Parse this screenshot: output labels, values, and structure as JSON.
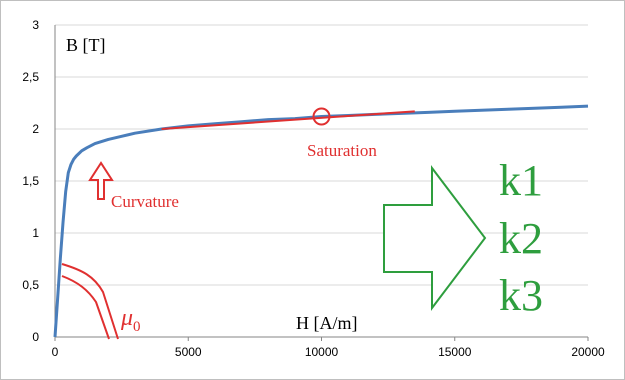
{
  "chart_data": {
    "type": "line",
    "title": "",
    "xlabel": "H [A/m]",
    "ylabel": "B [T]",
    "xlim": [
      0,
      20000
    ],
    "ylim": [
      0,
      3
    ],
    "x_ticks": [
      "0",
      "5000",
      "10000",
      "15000",
      "20000"
    ],
    "y_ticks": [
      "0",
      "0,5",
      "1",
      "1,5",
      "2",
      "2,5",
      "3"
    ],
    "grid": "horizontal",
    "series": [
      {
        "color": "#4a7ebb",
        "x": [
          0,
          100,
          200,
          300,
          400,
          500,
          600,
          700,
          800,
          1000,
          1200,
          1500,
          2000,
          2500,
          3000,
          4000,
          5000,
          6000,
          7000,
          8000,
          9000,
          10000,
          11000,
          12000,
          13000,
          14000,
          15000,
          16000,
          17000,
          18000,
          19000,
          20000
        ],
        "y": [
          0,
          0.38,
          0.75,
          1.1,
          1.4,
          1.58,
          1.66,
          1.71,
          1.74,
          1.79,
          1.82,
          1.86,
          1.9,
          1.93,
          1.96,
          2.0,
          2.03,
          2.05,
          2.07,
          2.09,
          2.1,
          2.12,
          2.13,
          2.14,
          2.15,
          2.16,
          2.17,
          2.18,
          2.19,
          2.2,
          2.21,
          2.22
        ]
      }
    ],
    "annotations": {
      "saturation_label": "Saturation",
      "curvature_label": "Curvature",
      "mu0_label": "μ",
      "mu0_subscript": "0",
      "saturation_line": {
        "x": [
          4000,
          13500
        ],
        "y": [
          2.0,
          2.17
        ]
      },
      "saturation_marker": {
        "x": 10000,
        "y": 2.12
      },
      "k_labels": [
        "k1",
        "k2",
        "k3"
      ]
    },
    "colors": {
      "curve": "#4a7ebb",
      "annotation": "#e03030",
      "arrow": "#2e9e3e",
      "k_text": "#2e9e3e",
      "grid": "#d9d9d9"
    }
  }
}
